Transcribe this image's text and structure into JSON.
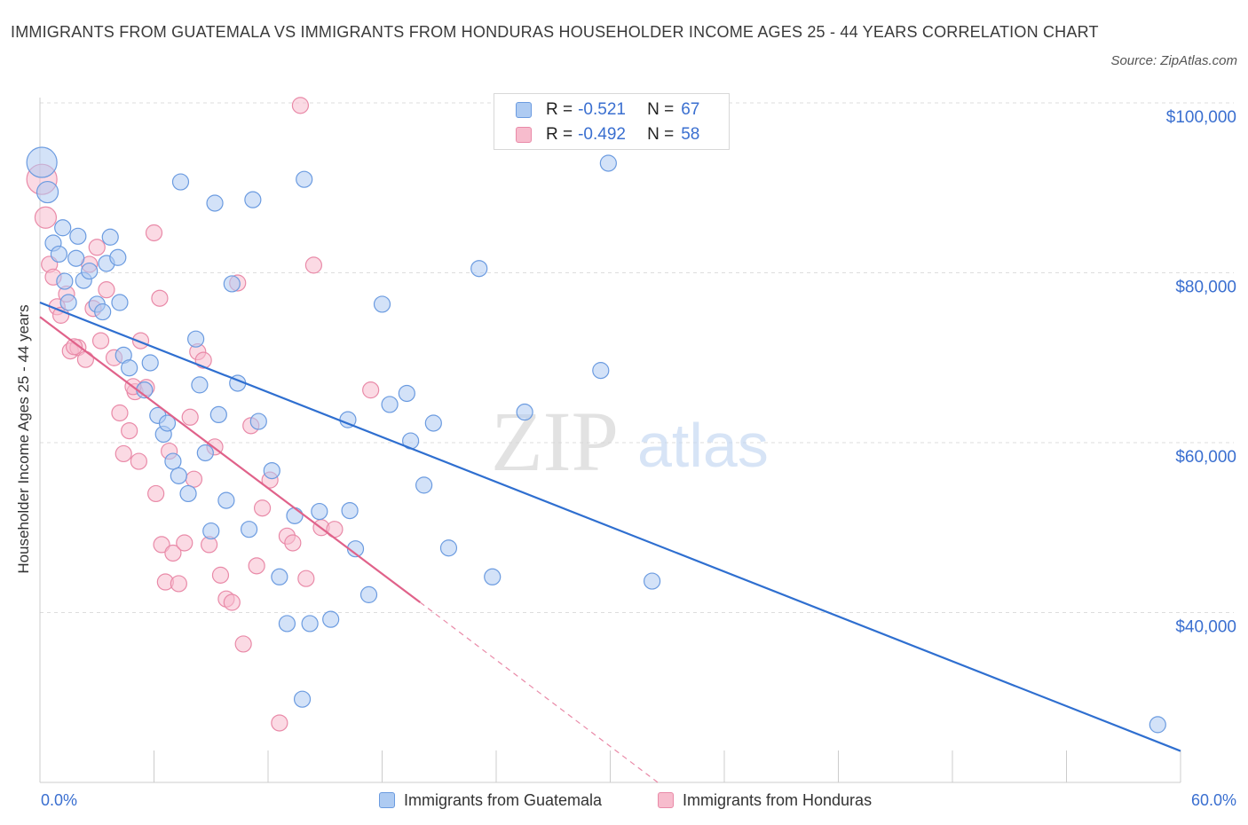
{
  "title": "IMMIGRANTS FROM GUATEMALA VS IMMIGRANTS FROM HONDURAS HOUSEHOLDER INCOME AGES 25 - 44 YEARS CORRELATION CHART",
  "source": "Source: ZipAtlas.com",
  "watermark": {
    "zip": "ZIP",
    "atlas": "atlas"
  },
  "legend": {
    "rows": [
      {
        "r_label": "R =",
        "r_value": "-0.521",
        "n_label": "N =",
        "n_value": "67"
      },
      {
        "r_label": "R =",
        "r_value": "-0.492",
        "n_label": "N =",
        "n_value": "58"
      }
    ]
  },
  "colors": {
    "guatemala_fill": "#aecbf2",
    "guatemala_stroke": "#6b9be0",
    "guatemala_line": "#2f6fd0",
    "honduras_fill": "#f7bccd",
    "honduras_stroke": "#e98aa8",
    "honduras_line": "#e0628a",
    "axis_text": "#3a6fd0",
    "grid": "#dddddd"
  },
  "chart_data": {
    "type": "scatter",
    "title": "IMMIGRANTS FROM GUATEMALA VS IMMIGRANTS FROM HONDURAS HOUSEHOLDER INCOME AGES 25 - 44 YEARS CORRELATION CHART",
    "xlabel": "",
    "ylabel": "Householder Income Ages 25 - 44 years",
    "xlim": [
      0,
      60
    ],
    "ylim": [
      20000,
      100000
    ],
    "x_tick_labels": [
      "0.0%",
      "60.0%"
    ],
    "y_ticks": [
      40000,
      60000,
      80000,
      100000
    ],
    "y_tick_labels": [
      "$40,000",
      "$60,000",
      "$80,000",
      "$100,000"
    ],
    "grid": true,
    "legend_position": "top-center",
    "series": [
      {
        "name": "Immigrants from Guatemala",
        "points": [
          [
            0.1,
            93000
          ],
          [
            0.4,
            89500
          ],
          [
            0.7,
            83500
          ],
          [
            1.2,
            85300
          ],
          [
            1.0,
            82200
          ],
          [
            1.3,
            79000
          ],
          [
            1.5,
            76500
          ],
          [
            2.3,
            79100
          ],
          [
            2.0,
            84300
          ],
          [
            1.9,
            81700
          ],
          [
            2.6,
            80200
          ],
          [
            3.0,
            76300
          ],
          [
            3.3,
            75400
          ],
          [
            3.5,
            81100
          ],
          [
            3.7,
            84200
          ],
          [
            4.1,
            81800
          ],
          [
            4.2,
            76500
          ],
          [
            4.4,
            70300
          ],
          [
            4.7,
            68800
          ],
          [
            5.5,
            66200
          ],
          [
            5.8,
            69400
          ],
          [
            6.2,
            63200
          ],
          [
            6.5,
            61000
          ],
          [
            6.7,
            62300
          ],
          [
            7.0,
            57800
          ],
          [
            7.3,
            56100
          ],
          [
            7.8,
            54000
          ],
          [
            8.2,
            72200
          ],
          [
            8.4,
            66800
          ],
          [
            8.7,
            58800
          ],
          [
            9.0,
            49600
          ],
          [
            9.4,
            63300
          ],
          [
            9.8,
            53200
          ],
          [
            10.1,
            78700
          ],
          [
            10.4,
            67000
          ],
          [
            11.0,
            49800
          ],
          [
            11.5,
            62500
          ],
          [
            12.2,
            56700
          ],
          [
            12.6,
            44200
          ],
          [
            13.0,
            38700
          ],
          [
            13.4,
            51400
          ],
          [
            14.2,
            38700
          ],
          [
            14.7,
            51900
          ],
          [
            15.3,
            39200
          ],
          [
            16.3,
            52000
          ],
          [
            16.6,
            47500
          ],
          [
            17.3,
            42100
          ],
          [
            18.0,
            76300
          ],
          [
            19.3,
            65800
          ],
          [
            19.5,
            60200
          ],
          [
            20.2,
            55000
          ],
          [
            20.7,
            62300
          ],
          [
            21.5,
            47600
          ],
          [
            23.1,
            80500
          ],
          [
            23.8,
            44200
          ],
          [
            25.5,
            63600
          ],
          [
            29.5,
            68500
          ],
          [
            29.9,
            92900
          ],
          [
            32.2,
            43700
          ],
          [
            13.9,
            91000
          ],
          [
            9.2,
            88200
          ],
          [
            11.2,
            88600
          ],
          [
            7.4,
            90700
          ],
          [
            16.2,
            62700
          ],
          [
            18.4,
            64500
          ],
          [
            13.8,
            29800
          ],
          [
            58.8,
            26800
          ]
        ]
      },
      {
        "name": "Immigrants from Honduras",
        "points": [
          [
            0.1,
            91000
          ],
          [
            0.3,
            86500
          ],
          [
            0.5,
            81000
          ],
          [
            0.7,
            79500
          ],
          [
            0.9,
            76000
          ],
          [
            1.1,
            75000
          ],
          [
            1.4,
            77500
          ],
          [
            1.6,
            70800
          ],
          [
            2.0,
            71200
          ],
          [
            2.4,
            69800
          ],
          [
            2.6,
            81000
          ],
          [
            3.0,
            83000
          ],
          [
            3.2,
            72000
          ],
          [
            3.5,
            78000
          ],
          [
            3.9,
            70000
          ],
          [
            4.2,
            63500
          ],
          [
            4.4,
            58700
          ],
          [
            4.7,
            61400
          ],
          [
            5.0,
            66000
          ],
          [
            5.3,
            72000
          ],
          [
            5.6,
            66500
          ],
          [
            6.0,
            84700
          ],
          [
            6.1,
            54000
          ],
          [
            6.4,
            48000
          ],
          [
            6.6,
            43600
          ],
          [
            6.8,
            59000
          ],
          [
            7.0,
            47000
          ],
          [
            7.3,
            43400
          ],
          [
            7.6,
            48200
          ],
          [
            7.9,
            63000
          ],
          [
            8.1,
            55700
          ],
          [
            8.3,
            70700
          ],
          [
            8.6,
            69700
          ],
          [
            8.9,
            48000
          ],
          [
            9.2,
            59500
          ],
          [
            9.5,
            44400
          ],
          [
            9.8,
            41600
          ],
          [
            10.1,
            41200
          ],
          [
            10.4,
            78800
          ],
          [
            10.7,
            36300
          ],
          [
            11.1,
            62000
          ],
          [
            11.4,
            45500
          ],
          [
            11.7,
            52300
          ],
          [
            12.1,
            55600
          ],
          [
            12.6,
            27000
          ],
          [
            13.0,
            49000
          ],
          [
            13.3,
            48200
          ],
          [
            13.7,
            99700
          ],
          [
            14.0,
            44000
          ],
          [
            14.4,
            80900
          ],
          [
            14.8,
            50000
          ],
          [
            15.5,
            49800
          ],
          [
            17.4,
            66200
          ],
          [
            4.9,
            66600
          ],
          [
            5.2,
            57800
          ],
          [
            6.3,
            77000
          ],
          [
            2.8,
            75800
          ],
          [
            1.8,
            71300
          ]
        ]
      }
    ],
    "trendlines": [
      {
        "series": "Immigrants from Guatemala",
        "x0": 0,
        "y0": 76500,
        "x1": 60,
        "y1": 23700
      },
      {
        "series": "Immigrants from Honduras",
        "x0": 0,
        "y0": 74800,
        "x1": 20,
        "y1": 41200,
        "dashed_to_x": 32.5,
        "dashed_to_y": 20000
      }
    ]
  }
}
